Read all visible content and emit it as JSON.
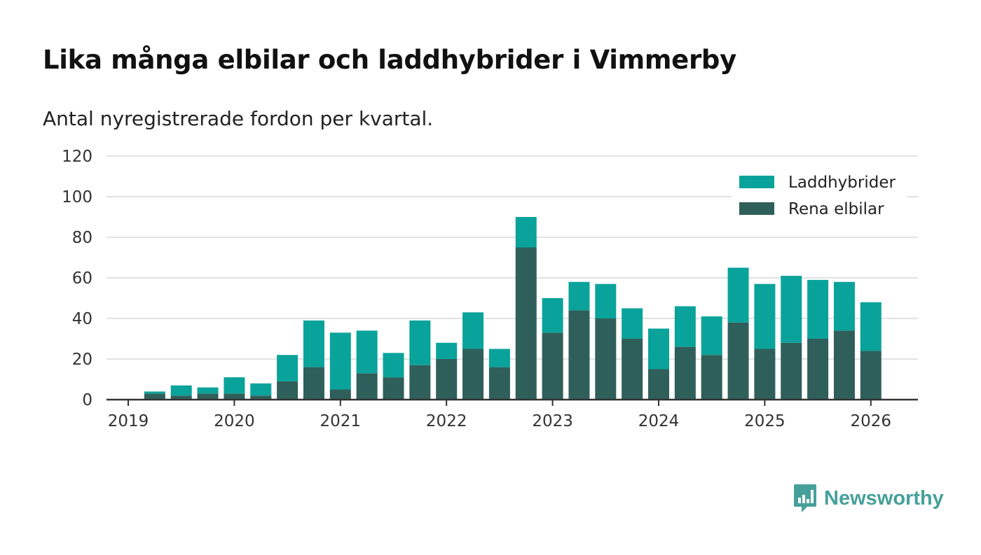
{
  "title": "Lika många elbilar och laddhybrider i Vimmerby",
  "subtitle": "Antal nyregistrerade fordon per kvartal.",
  "brand": {
    "name": "Newsworthy",
    "icon": "newsworthy-logo-icon"
  },
  "colors": {
    "laddhybrider": "#0aa39b",
    "rena_elbilar": "#2f5f5a",
    "grid": "#d9d9d9",
    "axis": "#333333",
    "tick_text": "#333333"
  },
  "chart_data": {
    "type": "bar",
    "stacked": true,
    "title": "Lika många elbilar och laddhybrider i Vimmerby",
    "subtitle": "Antal nyregistrerade fordon per kvartal.",
    "xlabel": "",
    "ylabel": "",
    "ylim": [
      0,
      120
    ],
    "yticks": [
      0,
      20,
      40,
      60,
      80,
      100,
      120
    ],
    "xlim": [
      2019,
      2026.5
    ],
    "xticks": [
      "2019",
      "2020",
      "2021",
      "2022",
      "2023",
      "2024",
      "2025",
      "2026"
    ],
    "grid": true,
    "legend": {
      "placement": "top-right",
      "entries": [
        "Laddhybrider",
        "Rena elbilar"
      ]
    },
    "categories": [
      "2019 K2",
      "2019 K3",
      "2019 K4",
      "2020 K1",
      "2020 K2",
      "2020 K3",
      "2020 K4",
      "2021 K1",
      "2021 K2",
      "2021 K3",
      "2021 K4",
      "2022 K1",
      "2022 K2",
      "2022 K3",
      "2022 K4",
      "2023 K1",
      "2023 K2",
      "2023 K3",
      "2023 K4",
      "2024 K1",
      "2024 K2",
      "2024 K3",
      "2024 K4",
      "2025 K1",
      "2025 K2",
      "2025 K3",
      "2025 K4",
      "2026 K1"
    ],
    "x": [
      2019.25,
      2019.5,
      2019.75,
      2020.0,
      2020.25,
      2020.5,
      2020.75,
      2021.0,
      2021.25,
      2021.5,
      2021.75,
      2022.0,
      2022.25,
      2022.5,
      2022.75,
      2023.0,
      2023.25,
      2023.5,
      2023.75,
      2024.0,
      2024.25,
      2024.5,
      2024.75,
      2025.0,
      2025.25,
      2025.5,
      2025.75,
      2026.0
    ],
    "series": [
      {
        "name": "Rena elbilar",
        "color": "#2f5f5a",
        "values": [
          3,
          2,
          3,
          3,
          2,
          9,
          16,
          5,
          13,
          11,
          17,
          20,
          25,
          16,
          75,
          33,
          44,
          40,
          30,
          15,
          26,
          22,
          38,
          25,
          28,
          30,
          34,
          24
        ]
      },
      {
        "name": "Laddhybrider",
        "color": "#0aa39b",
        "values": [
          1,
          5,
          3,
          8,
          6,
          13,
          23,
          28,
          21,
          12,
          22,
          8,
          18,
          9,
          15,
          17,
          14,
          17,
          15,
          20,
          20,
          19,
          27,
          32,
          33,
          29,
          24,
          24
        ]
      }
    ]
  }
}
